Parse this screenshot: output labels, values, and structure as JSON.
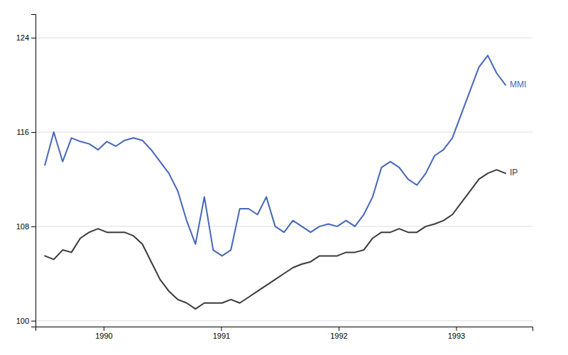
{
  "chart_data": {
    "type": "line",
    "x": [
      1989.5,
      1989.5753846,
      1989.6507692,
      1989.7261538,
      1989.8015385,
      1989.8769231,
      1989.9523077,
      1990.0276923,
      1990.1030769,
      1990.1784615,
      1990.2538462,
      1990.3292308,
      1990.4046154,
      1990.48,
      1990.5553846,
      1990.6307692,
      1990.7061538,
      1990.7815385,
      1990.8569231,
      1990.9323077,
      1991.0076923,
      1991.0830769,
      1991.1584615,
      1991.2338462,
      1991.3092308,
      1991.3846154,
      1991.46,
      1991.5353846,
      1991.6107692,
      1991.6861538,
      1991.7615385,
      1991.8369231,
      1991.9123077,
      1991.9876923,
      1992.0630769,
      1992.1384615,
      1992.2138462,
      1992.2892308,
      1992.3646154,
      1992.44,
      1992.5153846,
      1992.5907692,
      1992.6661538,
      1992.7415385,
      1992.8169231,
      1992.8923077,
      1992.9676923,
      1993.0430769,
      1993.1184615,
      1993.1938462,
      1993.2692308,
      1993.3446154,
      1993.42
    ],
    "series": [
      {
        "name": "MMI",
        "color": "#4466bb",
        "values": [
          113.2,
          116.0,
          113.5,
          115.5,
          115.2,
          115.0,
          114.5,
          115.2,
          114.8,
          115.3,
          115.5,
          115.3,
          114.5,
          113.5,
          112.5,
          111.0,
          108.5,
          106.5,
          110.5,
          106.0,
          105.5,
          106.0,
          109.5,
          109.5,
          109.0,
          110.5,
          108.0,
          107.5,
          108.5,
          108.0,
          107.5,
          108.0,
          108.2,
          108.0,
          108.5,
          108.0,
          109.0,
          110.5,
          113.0,
          113.5,
          113.0,
          112.0,
          111.5,
          112.5,
          114.0,
          114.5,
          115.5,
          117.5,
          119.5,
          121.5,
          122.5,
          121.0,
          120.0
        ]
      },
      {
        "name": "IP",
        "color": "#3a3a3a",
        "values": [
          105.5,
          105.2,
          106.0,
          105.8,
          107.0,
          107.5,
          107.8,
          107.5,
          107.5,
          107.5,
          107.2,
          106.5,
          105.0,
          103.5,
          102.5,
          101.8,
          101.5,
          101.0,
          101.5,
          101.5,
          101.5,
          101.8,
          101.5,
          102.0,
          102.5,
          103.0,
          103.5,
          104.0,
          104.5,
          104.8,
          105.0,
          105.5,
          105.5,
          105.5,
          105.8,
          105.8,
          106.0,
          107.0,
          107.5,
          107.5,
          107.8,
          107.5,
          107.5,
          108.0,
          108.2,
          108.5,
          109.0,
          110.0,
          111.0,
          112.0,
          112.5,
          112.8,
          112.5
        ]
      }
    ],
    "xlim": [
      1989.42,
      1993.65
    ],
    "xticks": [
      1990,
      1991,
      1992,
      1993
    ],
    "ylim": [
      99.5,
      126
    ],
    "yticks": [
      100,
      108,
      116,
      124
    ],
    "grid": true
  }
}
